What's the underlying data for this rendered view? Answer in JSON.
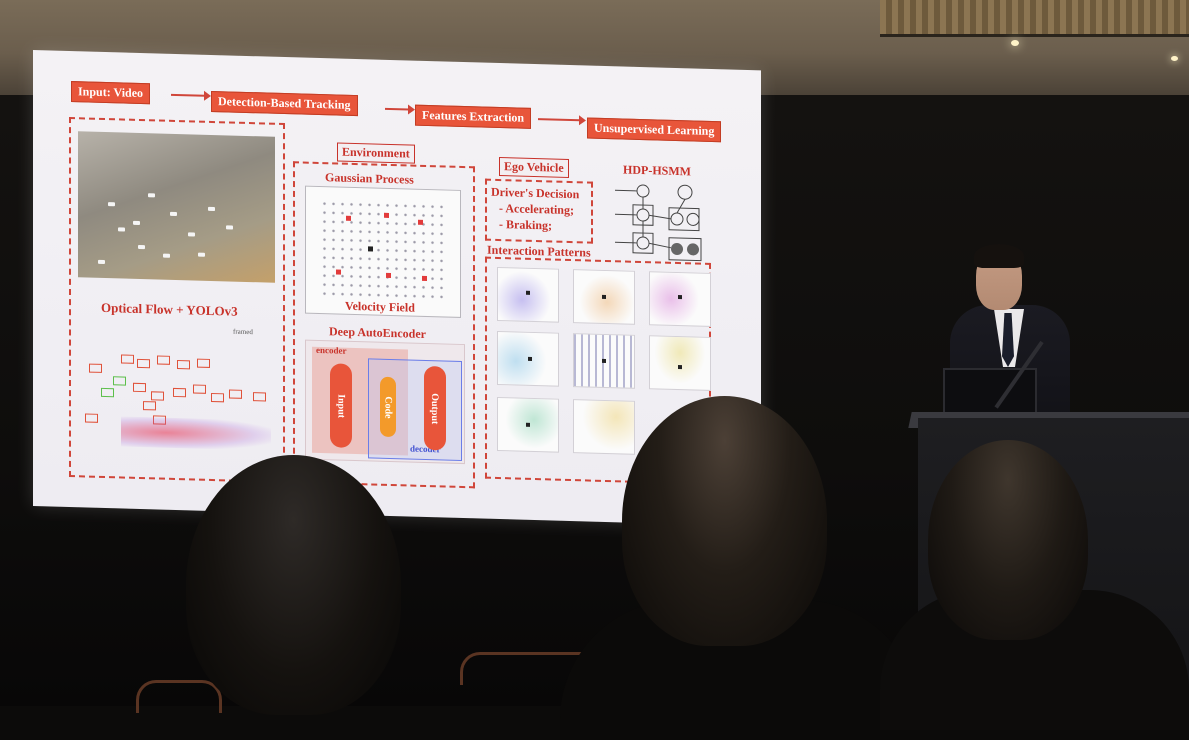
{
  "slide": {
    "input_video": "Input: Video",
    "detection_tracking": "Detection-Based Tracking",
    "features_extraction": "Features Extraction",
    "unsupervised_learning": "Unsupervised Learning",
    "environment": "Environment",
    "ego_vehicle": "Ego Vehicle",
    "gaussian_process": "Gaussian Process",
    "velocity_field": "Velocity Field",
    "deep_autoencoder": "Deep AutoEncoder",
    "encoder": "encoder",
    "decoder": "decoder",
    "ae_input": "Input",
    "ae_code": "Code",
    "ae_output": "Output",
    "drivers_decision": "Driver's Decision",
    "accelerating": "- Accelerating;",
    "braking": "- Braking;",
    "interaction_patterns": "Interaction Patterns",
    "hdp_hsmm": "HDP-HSMM",
    "optical_flow": "Optical Flow + YOLOv3",
    "frame_label": "framed"
  },
  "colors": {
    "accent": "#e8553a",
    "dashed": "#d0463a",
    "screen": "#f3f1f4"
  }
}
